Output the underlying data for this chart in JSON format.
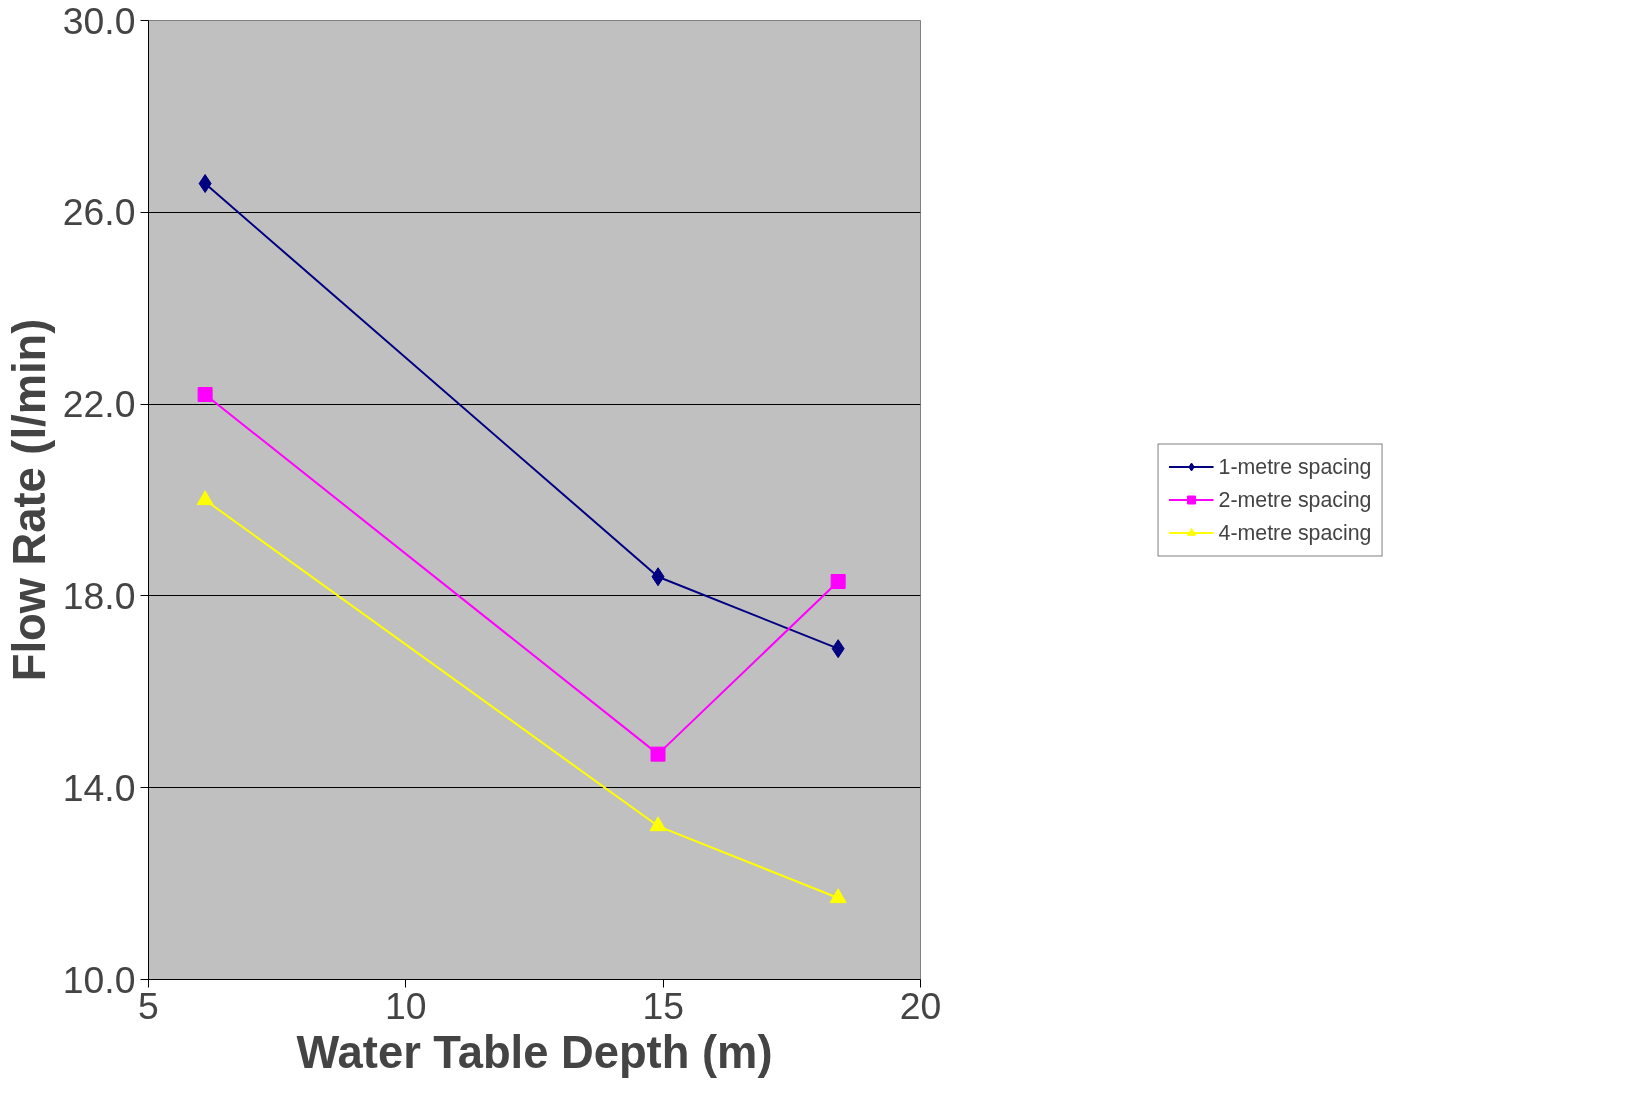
{
  "chart_data": {
    "type": "line",
    "xlabel": "Water Table Depth (m)",
    "ylabel": "Flow Rate (l/min)",
    "x": [
      6.1,
      14.9,
      18.4
    ],
    "series": [
      {
        "name": "1-metre spacing",
        "color": "#000080",
        "marker": "diamond",
        "values": [
          26.6,
          18.4,
          16.9
        ]
      },
      {
        "name": "2-metre spacing",
        "color": "#ff00ff",
        "marker": "square",
        "values": [
          22.2,
          14.7,
          18.3
        ]
      },
      {
        "name": "4-metre spacing",
        "color": "#ffff00",
        "marker": "triangle",
        "values": [
          20.0,
          13.2,
          11.7
        ]
      }
    ],
    "xlim": [
      5,
      20
    ],
    "xticks": [
      5,
      10,
      15,
      20
    ],
    "ylim": [
      10,
      30
    ],
    "yticks": [
      {
        "value": 10,
        "label": "10.0"
      },
      {
        "value": 14,
        "label": "14.0"
      },
      {
        "value": 18,
        "label": "18.0"
      },
      {
        "value": 22,
        "label": "22.0"
      },
      {
        "value": 26,
        "label": "26.0"
      },
      {
        "value": 30,
        "label": "30.0"
      }
    ],
    "grid": "y",
    "legend": "right",
    "line_style": "solid"
  }
}
